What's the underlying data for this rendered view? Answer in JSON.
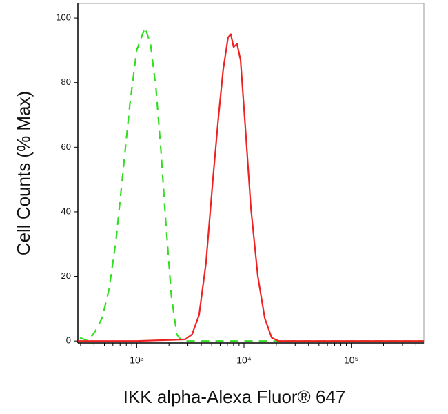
{
  "chart_data": {
    "type": "line",
    "xlabel": "IKK alpha-Alexa Fluor® 647",
    "ylabel": "Cell Counts (% Max)",
    "xscale": "log",
    "xlim": [
      283,
      475000
    ],
    "ylim": [
      -0.6,
      104.5
    ],
    "xticks": [
      {
        "value": 1000,
        "label": "10³"
      },
      {
        "value": 10000,
        "label": "10⁴"
      },
      {
        "value": 100000,
        "label": "10⁵"
      }
    ],
    "xminorticks": [
      300,
      400,
      500,
      600,
      700,
      800,
      900,
      2000,
      3000,
      4000,
      5000,
      6000,
      7000,
      8000,
      9000,
      20000,
      30000,
      40000,
      50000,
      60000,
      70000,
      80000,
      90000,
      200000,
      300000,
      400000
    ],
    "yticks": [
      0,
      20,
      40,
      60,
      80,
      100
    ],
    "series": [
      {
        "color": "#33dd22",
        "dashed": true,
        "x": [
          296,
          353,
          410,
          475,
          552,
          640,
          743,
          862,
          1000,
          1077,
          1195,
          1346,
          1515,
          1682,
          1866,
          2103,
          2367,
          2627,
          9290,
          86100,
          475000
        ],
        "values": [
          1,
          0,
          3,
          7,
          16,
          31,
          52,
          73,
          90,
          93,
          97,
          92,
          78,
          59,
          37,
          14,
          2,
          0,
          0,
          0,
          0
        ]
      },
      {
        "color": "#ee2222",
        "dashed": false,
        "x": [
          283,
          1000,
          2830,
          3280,
          3810,
          4420,
          5130,
          5770,
          6400,
          7110,
          7540,
          8000,
          8610,
          9290,
          10450,
          11610,
          13460,
          15630,
          18130,
          21030,
          475000
        ],
        "values": [
          0,
          0,
          0.5,
          2,
          8,
          24,
          50,
          69,
          84,
          94,
          95,
          91,
          92,
          87,
          63,
          41,
          20,
          7,
          1,
          0,
          0
        ]
      }
    ]
  }
}
